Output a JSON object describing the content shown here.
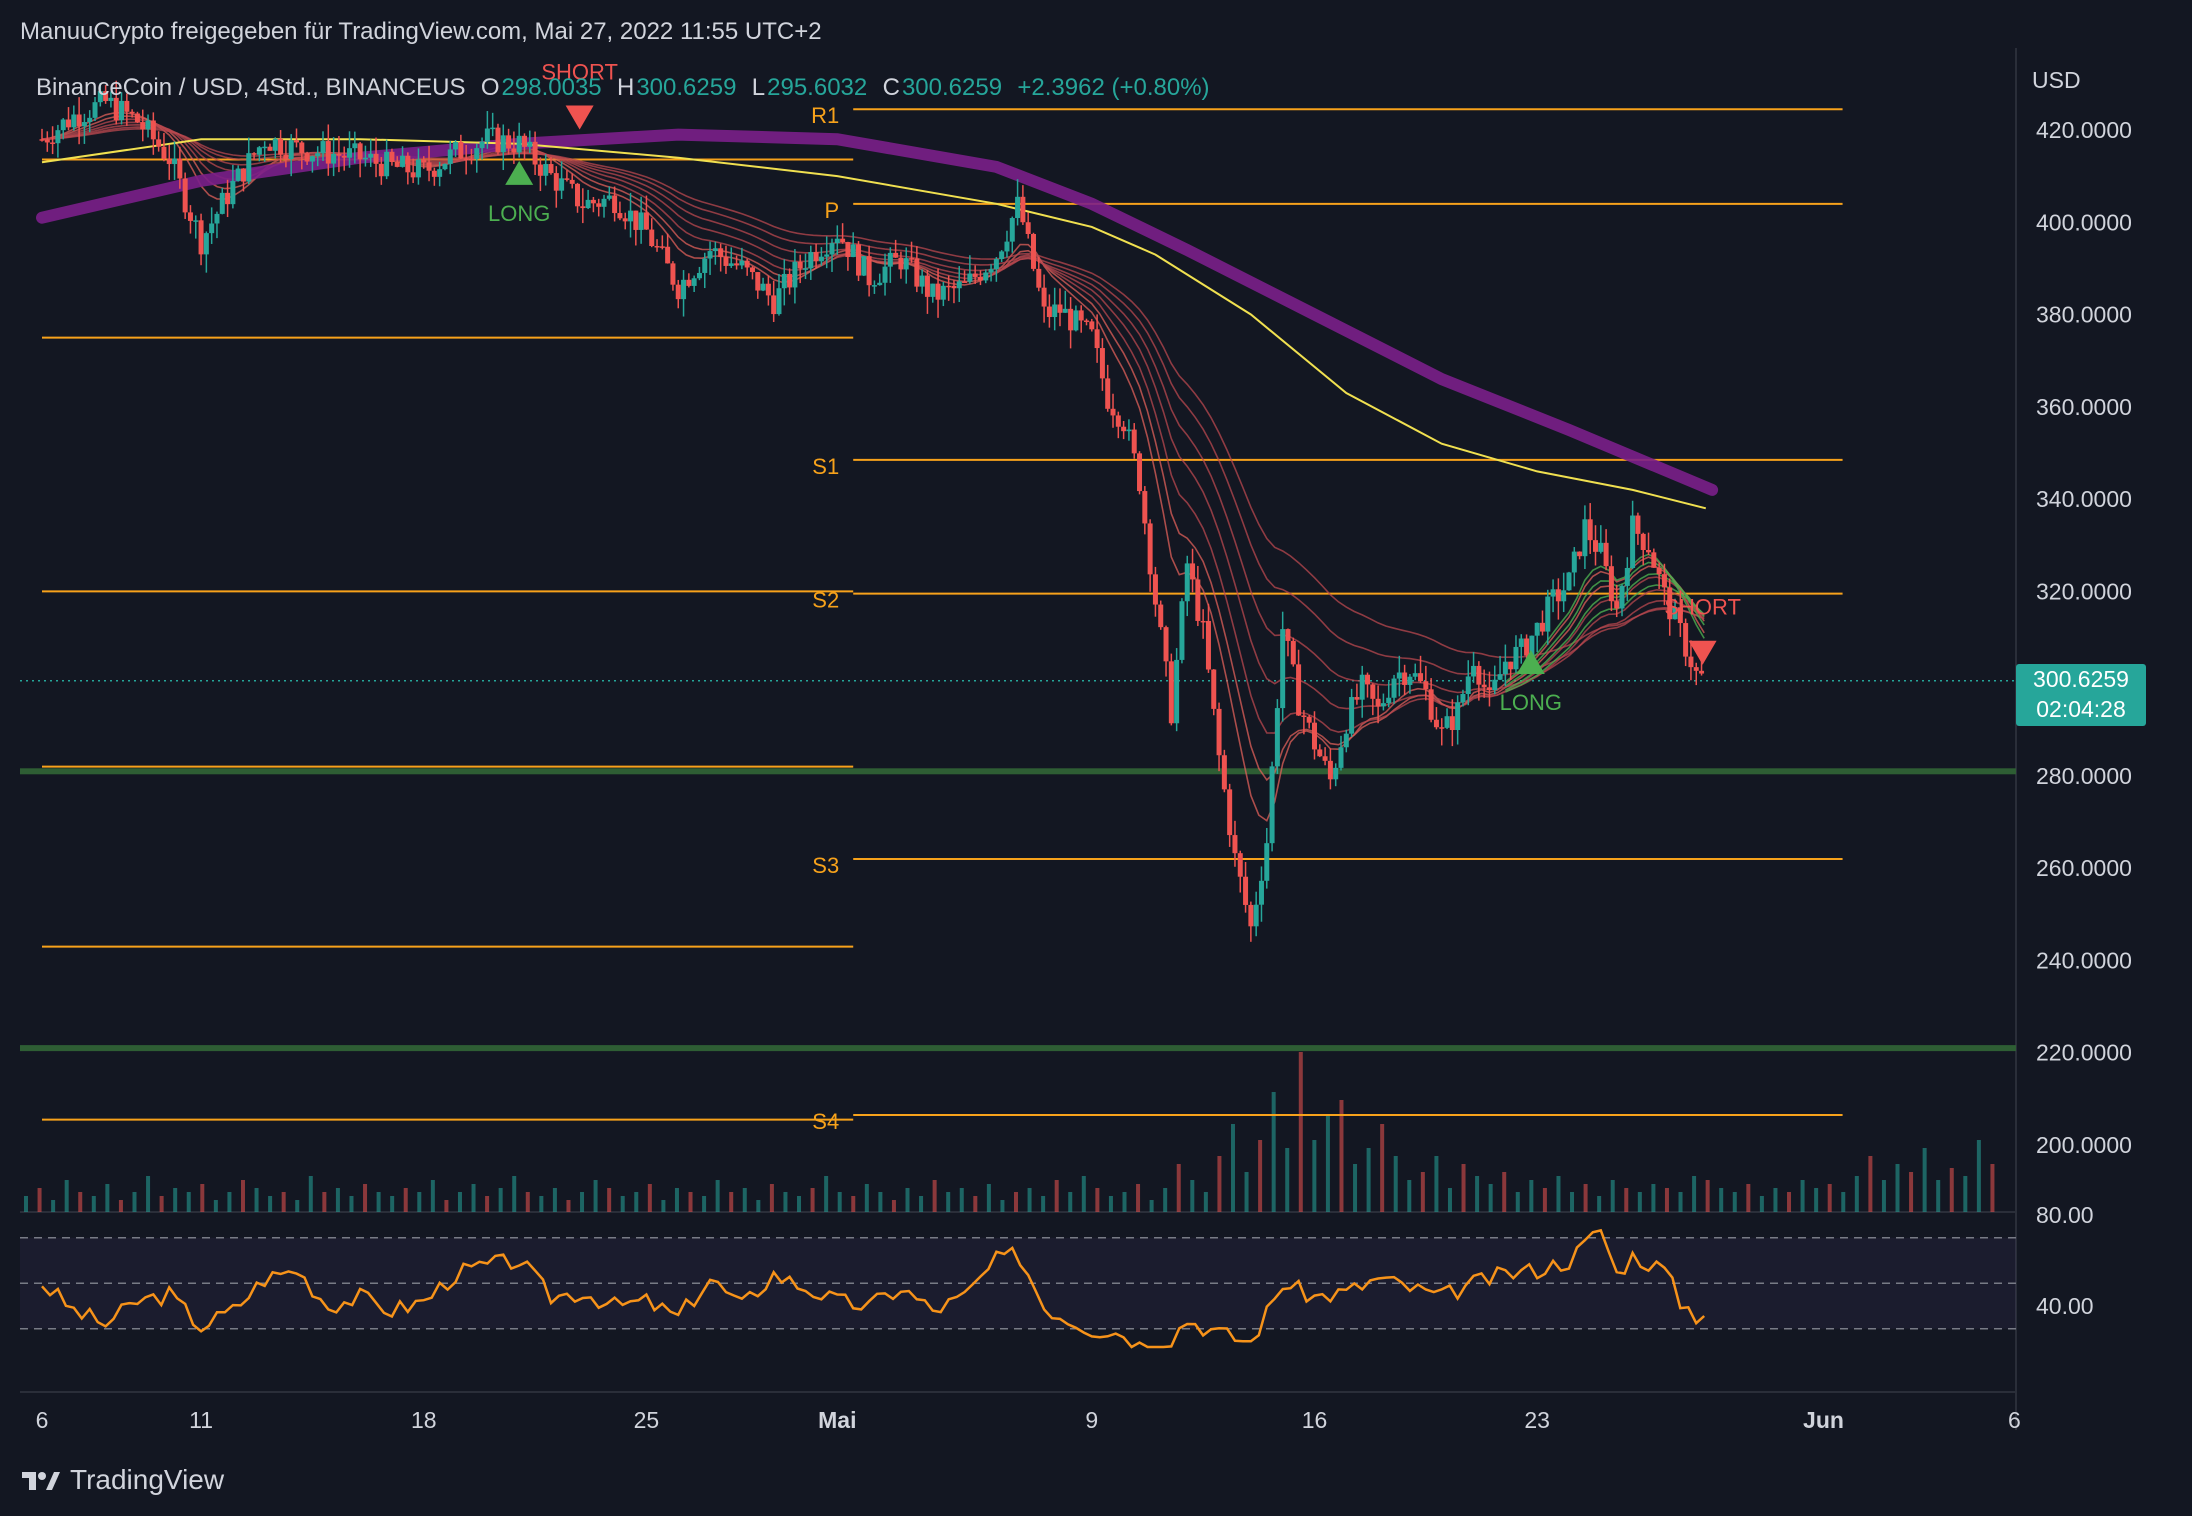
{
  "header": {
    "publisher": "ManuuCrypto freigegeben für TradingView.com, Mai 27, 2022 11:55 UTC+2"
  },
  "legend": {
    "symbol": "BinanceCoin / USD, 4Std., BINANCEUS",
    "o_label": "O",
    "o_value": "298.0035",
    "h_label": "H",
    "h_value": "300.6259",
    "l_label": "L",
    "l_value": "295.6032",
    "c_label": "C",
    "c_value": "300.6259",
    "change": "+2.3962 (+0.80%)"
  },
  "price_tag": {
    "price": "300.6259",
    "countdown": "02:04:28"
  },
  "brand": {
    "name": "TradingView"
  },
  "colors": {
    "up": "#26a69a",
    "down": "#ef5350",
    "level": "#f7a21b",
    "ma_yellow": "#f0e050",
    "ma_purple": "#7b1f8a",
    "rsi": "#f7931a",
    "support_green": "#2e5e34"
  },
  "chart_data": [
    {
      "type": "candlestick",
      "currency": "USD",
      "y_ticks": [
        "420.0000",
        "400.0000",
        "380.0000",
        "360.0000",
        "340.0000",
        "320.0000",
        "280.0000",
        "260.0000",
        "240.0000",
        "220.0000",
        "200.0000"
      ],
      "y_tick_values": [
        420,
        400,
        380,
        360,
        340,
        320,
        280,
        260,
        240,
        220,
        200
      ],
      "ylim": [
        194,
        436
      ],
      "x_ticks": [
        "6",
        "11",
        "18",
        "25",
        "Mai",
        "9",
        "16",
        "23",
        "Jun",
        "6"
      ],
      "x_tick_days": [
        0,
        5,
        12,
        19,
        25,
        33,
        40,
        47,
        56,
        62
      ],
      "x_domain_days": [
        0,
        62.6
      ],
      "last_price": 300.6259,
      "close_path": [
        [
          0,
          418
        ],
        [
          1,
          423
        ],
        [
          2,
          426
        ],
        [
          3,
          422
        ],
        [
          4,
          414
        ],
        [
          5,
          396
        ],
        [
          6,
          408
        ],
        [
          7,
          418
        ],
        [
          8,
          416
        ],
        [
          9,
          415
        ],
        [
          10,
          414
        ],
        [
          11,
          412
        ],
        [
          12,
          411
        ],
        [
          13,
          415
        ],
        [
          14,
          418
        ],
        [
          15,
          417
        ],
        [
          16,
          410
        ],
        [
          17,
          404
        ],
        [
          18,
          405
        ],
        [
          19,
          398
        ],
        [
          20,
          386
        ],
        [
          21,
          394
        ],
        [
          22,
          390
        ],
        [
          23,
          383
        ],
        [
          24,
          392
        ],
        [
          25,
          398
        ],
        [
          26,
          388
        ],
        [
          27,
          392
        ],
        [
          28,
          384
        ],
        [
          29,
          386
        ],
        [
          30,
          393
        ],
        [
          30.7,
          404
        ],
        [
          31.5,
          380
        ],
        [
          32,
          381
        ],
        [
          33,
          375
        ],
        [
          33.5,
          362
        ],
        [
          34,
          357
        ],
        [
          34.5,
          344
        ],
        [
          35,
          318
        ],
        [
          35.5,
          294
        ],
        [
          36,
          326
        ],
        [
          36.5,
          311
        ],
        [
          37,
          284
        ],
        [
          37.5,
          262
        ],
        [
          38,
          247
        ],
        [
          38.5,
          266
        ],
        [
          39,
          312
        ],
        [
          39.5,
          296
        ],
        [
          40,
          287
        ],
        [
          40.5,
          279
        ],
        [
          41,
          292
        ],
        [
          41.5,
          299
        ],
        [
          42,
          294
        ],
        [
          42.5,
          302
        ],
        [
          43,
          303
        ],
        [
          43.5,
          298
        ],
        [
          44,
          289
        ],
        [
          44.5,
          294
        ],
        [
          45,
          306
        ],
        [
          45.5,
          296
        ],
        [
          46,
          305
        ],
        [
          46.5,
          307
        ],
        [
          47,
          312
        ],
        [
          47.5,
          318
        ],
        [
          48,
          322
        ],
        [
          48.5,
          334
        ],
        [
          49,
          328
        ],
        [
          49.5,
          316
        ],
        [
          50,
          334
        ],
        [
          50.5,
          330
        ],
        [
          51,
          319
        ],
        [
          51.5,
          311
        ],
        [
          52,
          302
        ],
        [
          52.3,
          300.6
        ]
      ],
      "horizontal_levels": [
        {
          "label": "R1",
          "price": 424.5,
          "x_from": 25.5,
          "x_to": 56.6
        },
        {
          "label": "",
          "price": 413.6,
          "x_from": 0,
          "x_to": 25.5
        },
        {
          "label": "P",
          "price": 404,
          "x_from": 25.5,
          "x_to": 56.6
        },
        {
          "label": "",
          "price": 375,
          "x_from": 0,
          "x_to": 25.5
        },
        {
          "label": "S1",
          "price": 348.5,
          "x_from": 25.5,
          "x_to": 56.6
        },
        {
          "label": "",
          "price": 320,
          "x_from": 0,
          "x_to": 25.5
        },
        {
          "label": "S2",
          "price": 319.5,
          "x_from": 25.5,
          "x_to": 56.6
        },
        {
          "label": "",
          "price": 282,
          "x_from": 0,
          "x_to": 25.5
        },
        {
          "label": "S3",
          "price": 262,
          "x_from": 25.5,
          "x_to": 56.6
        },
        {
          "label": "",
          "price": 243,
          "x_from": 0,
          "x_to": 25.5
        },
        {
          "label": "S4",
          "price": 206.5,
          "x_from": 25.5,
          "x_to": 56.6
        },
        {
          "label": "",
          "price": 205.5,
          "x_from": 0,
          "x_to": 25.5
        }
      ],
      "support_zones": [
        281,
        221
      ],
      "ma_purple": [
        [
          0,
          401
        ],
        [
          5,
          409
        ],
        [
          10,
          414
        ],
        [
          15,
          417
        ],
        [
          20,
          419
        ],
        [
          25,
          418
        ],
        [
          30,
          412
        ],
        [
          33,
          404
        ],
        [
          36,
          394
        ],
        [
          40,
          380
        ],
        [
          44,
          366
        ],
        [
          48,
          355
        ],
        [
          52.5,
          342
        ]
      ],
      "ma_yellow": [
        [
          0,
          413
        ],
        [
          5,
          418
        ],
        [
          10,
          418
        ],
        [
          15,
          417
        ],
        [
          20,
          414
        ],
        [
          25,
          410
        ],
        [
          30,
          404
        ],
        [
          33,
          399
        ],
        [
          35,
          393
        ],
        [
          38,
          380
        ],
        [
          41,
          363
        ],
        [
          44,
          352
        ],
        [
          47,
          346
        ],
        [
          50,
          342
        ],
        [
          52.3,
          338
        ]
      ],
      "signals": [
        {
          "type": "LONG",
          "day": 15.0,
          "price": 412
        },
        {
          "type": "SHORT",
          "day": 16.9,
          "price": 424
        },
        {
          "type": "LONG",
          "day": 46.8,
          "price": 306
        },
        {
          "type": "SHORT",
          "day": 52.2,
          "price": 308
        }
      ]
    },
    {
      "type": "line",
      "indicator": "RSI",
      "y_ticks": [
        "80.00",
        "40.00"
      ],
      "y_tick_values": [
        80,
        40
      ],
      "ylim": [
        20,
        80
      ],
      "bands": [
        70,
        50,
        30
      ],
      "path": [
        [
          0,
          50
        ],
        [
          1,
          38
        ],
        [
          2,
          32
        ],
        [
          3,
          42
        ],
        [
          4,
          45
        ],
        [
          5,
          31
        ],
        [
          6,
          38
        ],
        [
          7,
          52
        ],
        [
          8,
          56
        ],
        [
          9,
          40
        ],
        [
          10,
          44
        ],
        [
          11,
          38
        ],
        [
          12,
          42
        ],
        [
          13,
          54
        ],
        [
          14,
          58
        ],
        [
          15,
          60
        ],
        [
          16,
          44
        ],
        [
          17,
          46
        ],
        [
          18,
          40
        ],
        [
          19,
          42
        ],
        [
          20,
          35
        ],
        [
          21,
          52
        ],
        [
          22,
          40
        ],
        [
          23,
          54
        ],
        [
          24,
          48
        ],
        [
          25,
          42
        ],
        [
          26,
          40
        ],
        [
          27,
          48
        ],
        [
          28,
          38
        ],
        [
          29,
          44
        ],
        [
          30,
          60
        ],
        [
          30.7,
          63
        ],
        [
          31.5,
          40
        ],
        [
          32,
          36
        ],
        [
          33,
          30
        ],
        [
          34,
          28
        ],
        [
          35,
          18
        ],
        [
          36,
          34
        ],
        [
          37,
          28
        ],
        [
          38,
          24
        ],
        [
          39,
          50
        ],
        [
          40,
          44
        ],
        [
          41,
          46
        ],
        [
          42,
          52
        ],
        [
          43,
          48
        ],
        [
          44,
          44
        ],
        [
          45,
          50
        ],
        [
          46,
          54
        ],
        [
          47,
          56
        ],
        [
          48,
          60
        ],
        [
          49,
          74
        ],
        [
          49.5,
          54
        ],
        [
          50,
          62
        ],
        [
          51,
          56
        ],
        [
          51.5,
          42
        ],
        [
          52,
          36
        ],
        [
          52.3,
          38
        ]
      ]
    },
    {
      "type": "bar",
      "indicator": "Volume",
      "values": [
        4,
        6,
        3,
        8,
        5,
        4,
        7,
        3,
        5,
        9,
        4,
        6,
        5,
        7,
        3,
        5,
        8,
        6,
        4,
        5,
        3,
        9,
        5,
        6,
        4,
        7,
        5,
        4,
        6,
        5,
        8,
        3,
        5,
        7,
        4,
        6,
        9,
        5,
        4,
        6,
        3,
        5,
        8,
        6,
        4,
        5,
        7,
        3,
        6,
        5,
        4,
        8,
        5,
        6,
        3,
        7,
        5,
        4,
        6,
        9,
        5,
        4,
        7,
        5,
        3,
        6,
        4,
        8,
        5,
        6,
        4,
        7,
        3,
        5,
        6,
        4,
        8,
        5,
        9,
        6,
        4,
        5,
        7,
        3,
        6,
        12,
        8,
        5,
        14,
        22,
        10,
        18,
        30,
        16,
        40,
        18,
        24,
        28,
        12,
        16,
        22,
        14,
        8,
        10,
        14,
        6,
        12,
        9,
        7,
        10,
        5,
        8,
        6,
        9,
        5,
        7,
        4,
        8,
        6,
        5,
        7,
        6,
        5,
        9,
        8,
        6,
        5,
        7,
        4,
        6,
        5,
        8,
        6,
        7,
        5,
        9,
        14,
        8,
        12,
        10,
        16,
        8,
        11,
        9,
        18,
        12
      ]
    }
  ]
}
